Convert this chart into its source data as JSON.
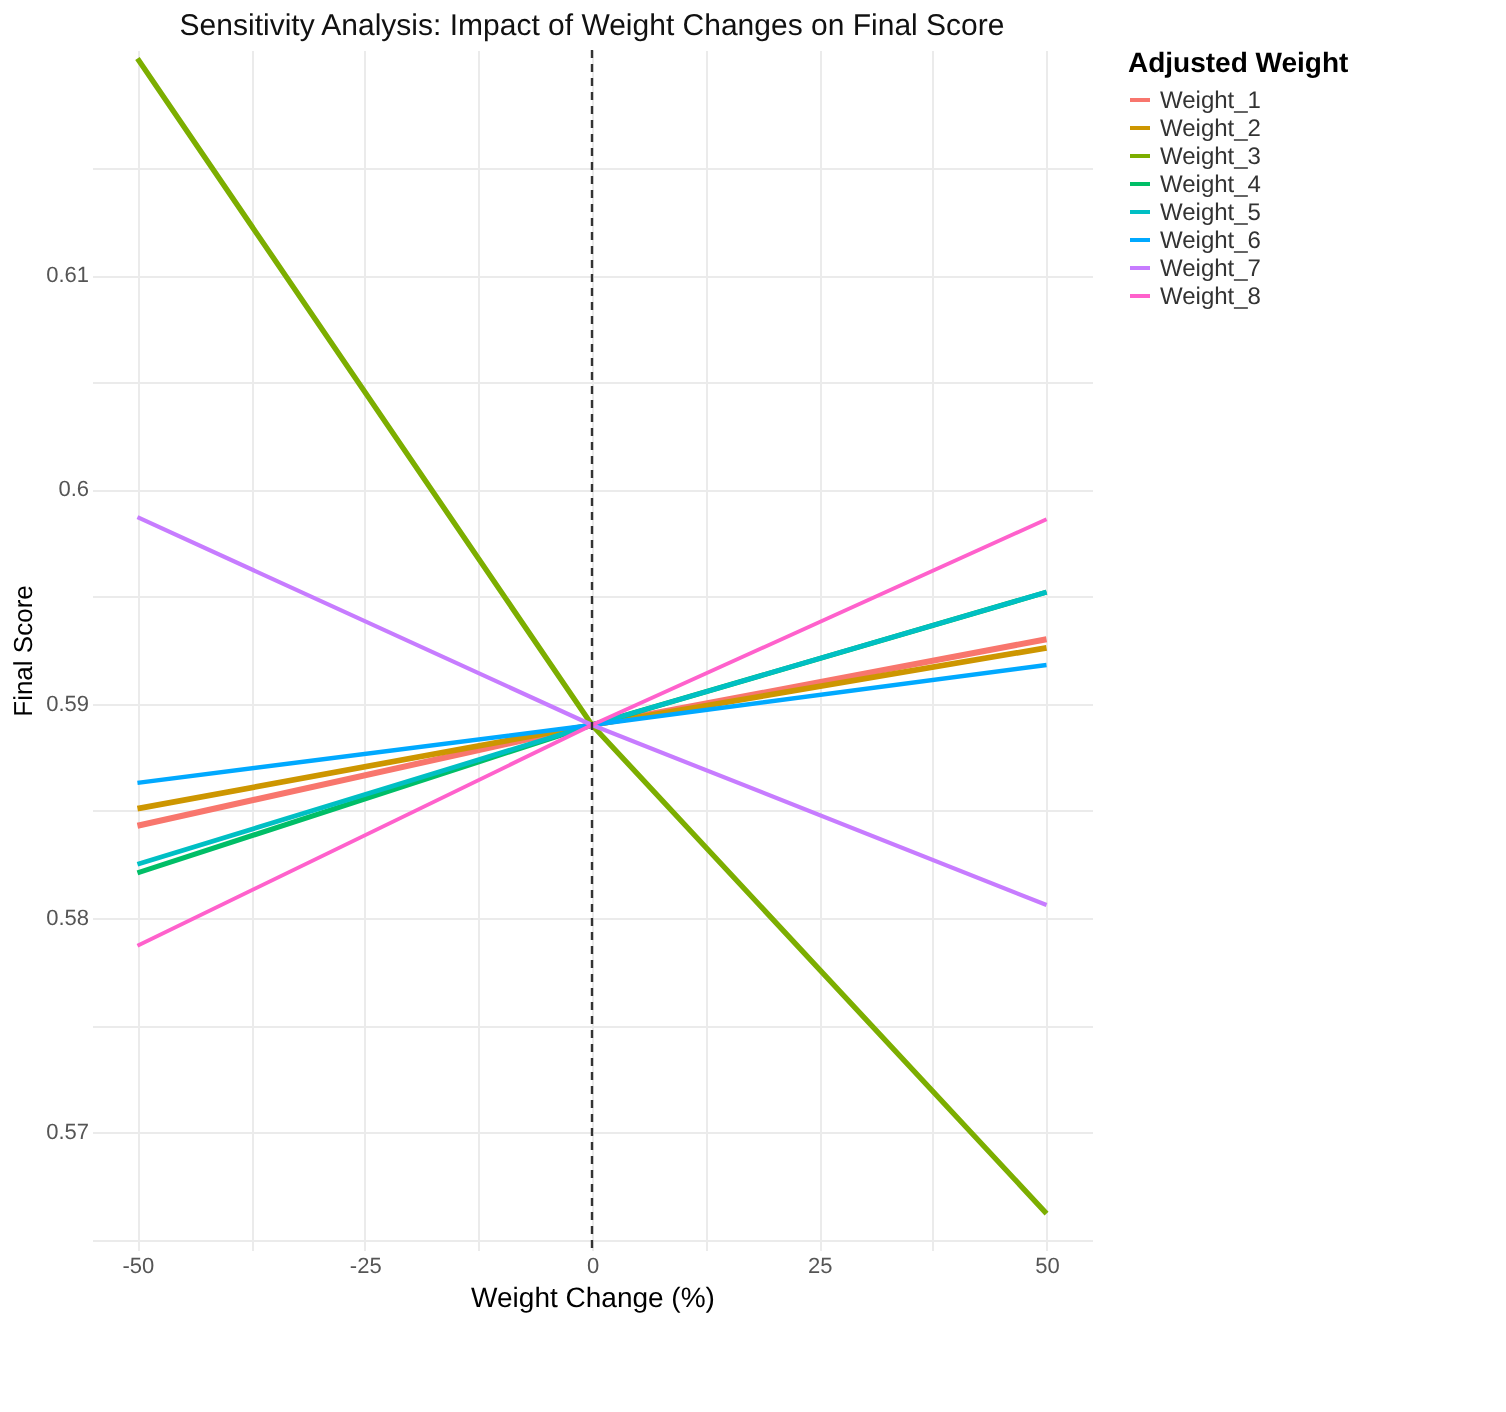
{
  "chart_data": {
    "type": "line",
    "title": "Sensitivity Analysis: Impact of Weight Changes on Final Score",
    "xlabel": "Weight Change (%)",
    "ylabel": "Final Score",
    "legend_title": "Adjusted Weight",
    "legend": "right",
    "grid": true,
    "line_style": "solid",
    "marker": "none",
    "x": [
      -50,
      0,
      50
    ],
    "xlim": [
      -55,
      55
    ],
    "xticks": [
      -50,
      {
        "value": -37.5,
        "label": null
      },
      -25,
      {
        "value": -12.5,
        "label": null
      },
      0,
      {
        "value": 12.5,
        "label": null
      },
      25,
      {
        "value": 37.5,
        "label": null
      },
      50
    ],
    "ylim": [
      0.5645,
      0.6205
    ],
    "yticks": [
      {
        "value": 0.565,
        "label": null
      },
      0.57,
      {
        "value": 0.575,
        "label": null
      },
      0.58,
      {
        "value": 0.585,
        "label": null
      },
      0.59,
      {
        "value": 0.595,
        "label": null
      },
      0.6,
      {
        "value": 0.605,
        "label": null
      },
      0.61,
      {
        "value": 0.615,
        "label": null
      }
    ],
    "series": [
      {
        "name": "Weight_1",
        "color": "#f8766d",
        "values": [
          0.5843,
          0.589,
          0.593
        ]
      },
      {
        "name": "Weight_2",
        "color": "#cd9600",
        "values": [
          0.5851,
          0.589,
          0.5926
        ]
      },
      {
        "name": "Weight_3",
        "color": "#7cae00",
        "values": [
          0.6201,
          0.589,
          0.5662
        ]
      },
      {
        "name": "Weight_4",
        "color": "#00be67",
        "values": [
          0.5821,
          0.589,
          0.5952
        ]
      },
      {
        "name": "Weight_5",
        "color": "#00bfc4",
        "values": [
          0.5825,
          0.589,
          0.5952
        ]
      },
      {
        "name": "Weight_6",
        "color": "#00a9ff",
        "values": [
          0.5863,
          0.589,
          0.5918
        ]
      },
      {
        "name": "Weight_7",
        "color": "#c77cff",
        "values": [
          0.5987,
          0.589,
          0.5806
        ]
      },
      {
        "name": "Weight_8",
        "color": "#ff61cc",
        "values": [
          0.5787,
          0.589,
          0.5986
        ]
      }
    ],
    "ref_lines": [
      {
        "axis": "x",
        "value": 0,
        "color": "#333333",
        "line_style": "dashed"
      }
    ]
  }
}
